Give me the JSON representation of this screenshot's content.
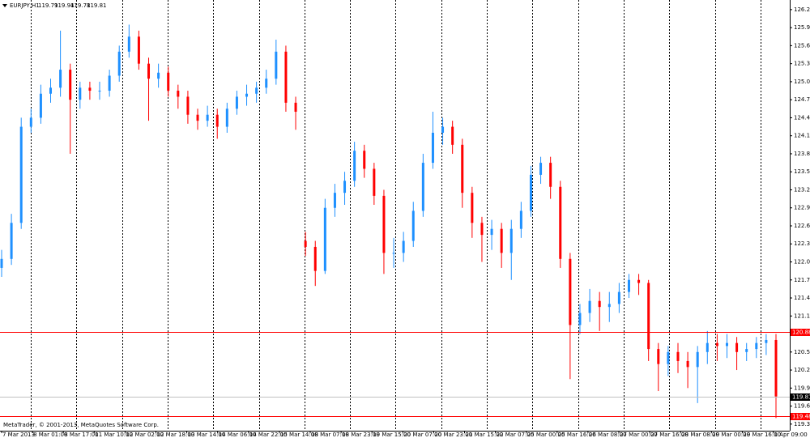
{
  "chart_data": {
    "type": "candlestick",
    "symbol": "EURJPY,H1",
    "ohlc": [
      119.79,
      119.94,
      119.78,
      119.81
    ],
    "copyright": "MetaTrader, © 2001-2013, MetaQuotes Software Corp.",
    "x_labels": [
      "7 Mar 2013",
      "8 Mar 01:00",
      "8 Mar 17:00",
      "11 Mar 10:00",
      "12 Mar 02:00",
      "12 Mar 18:00",
      "13 Mar 14:00",
      "14 Mar 06:00",
      "14 Mar 22:00",
      "15 Mar 14:00",
      "18 Mar 07:00",
      "18 Mar 23:00",
      "19 Mar 15:00",
      "20 Mar 07:00",
      "20 Mar 23:00",
      "21 Mar 15:00",
      "22 Mar 07:00",
      "25 Mar 00:00",
      "25 Mar 16:00",
      "26 Mar 08:00",
      "27 Mar 00:00",
      "27 Mar 16:00",
      "28 Mar 08:00",
      "29 Mar 00:00",
      "29 Mar 16:00",
      "1 Apr 09:00"
    ],
    "open": [
      121.95,
      122.1,
      122.7,
      124.3,
      124.45,
      124.85,
      124.95,
      125.25,
      124.75,
      124.95,
      124.9,
      124.9,
      125.15,
      125.55,
      125.8,
      125.35,
      125.1,
      125.2,
      124.9,
      124.8,
      124.5,
      124.4,
      124.5,
      124.3,
      124.6,
      124.8,
      124.85,
      124.95,
      125.1,
      125.55,
      124.7,
      122.4,
      122.3,
      121.9,
      122.95,
      123.2,
      123.4,
      123.9,
      123.6,
      123.15,
      122.2,
      122.2,
      122.4,
      122.9,
      123.7,
      124.2,
      124.3,
      124.0,
      123.2,
      122.7,
      122.5,
      122.6,
      122.2,
      122.6,
      122.9,
      123.5,
      123.7,
      123.3,
      122.1,
      121.0,
      121.2,
      121.4,
      121.3,
      121.35,
      121.55,
      121.75,
      121.7,
      120.6,
      120.35,
      120.55,
      120.4,
      120.3,
      120.55,
      120.7,
      120.65,
      120.7,
      120.55,
      120.6,
      120.7,
      120.75
    ],
    "high": [
      122.25,
      122.85,
      124.45,
      124.6,
      125.0,
      125.1,
      125.9,
      125.35,
      125.05,
      125.05,
      125.05,
      125.25,
      125.65,
      126.0,
      125.9,
      125.45,
      125.35,
      125.3,
      125.0,
      124.9,
      124.6,
      124.65,
      124.6,
      124.7,
      124.9,
      125.0,
      125.05,
      125.25,
      125.75,
      125.65,
      124.8,
      122.55,
      122.4,
      123.1,
      123.35,
      123.55,
      124.05,
      124.0,
      123.7,
      123.25,
      122.45,
      122.55,
      123.05,
      123.85,
      124.55,
      124.45,
      124.4,
      124.1,
      123.3,
      122.8,
      122.75,
      122.7,
      122.75,
      123.05,
      123.65,
      123.8,
      123.8,
      123.4,
      122.2,
      121.35,
      121.6,
      121.55,
      121.55,
      121.7,
      121.85,
      121.85,
      121.75,
      120.7,
      120.65,
      120.7,
      120.55,
      120.65,
      120.9,
      120.85,
      120.85,
      120.8,
      120.7,
      120.8,
      120.85,
      120.85
    ],
    "low": [
      121.8,
      122.0,
      122.6,
      124.2,
      124.35,
      124.7,
      124.8,
      123.85,
      124.6,
      124.75,
      124.75,
      124.8,
      125.05,
      125.45,
      125.25,
      124.4,
      124.95,
      124.8,
      124.6,
      124.35,
      124.25,
      124.3,
      124.1,
      124.2,
      124.5,
      124.65,
      124.7,
      124.85,
      125.0,
      124.55,
      124.25,
      122.15,
      121.65,
      121.85,
      122.8,
      123.0,
      123.3,
      123.45,
      123.0,
      121.85,
      121.95,
      122.05,
      122.3,
      122.8,
      123.6,
      124.0,
      123.85,
      122.95,
      122.45,
      122.05,
      122.25,
      121.95,
      121.75,
      122.45,
      122.8,
      123.35,
      123.1,
      121.95,
      120.1,
      120.85,
      121.05,
      120.9,
      121.05,
      121.2,
      121.45,
      121.5,
      120.4,
      119.9,
      120.15,
      120.2,
      119.95,
      119.7,
      120.35,
      120.4,
      120.45,
      120.25,
      120.4,
      120.45,
      120.5,
      119.45
    ],
    "close": [
      122.1,
      122.7,
      124.3,
      124.45,
      124.85,
      124.95,
      125.25,
      124.75,
      124.95,
      124.9,
      124.9,
      125.15,
      125.55,
      125.8,
      125.35,
      125.1,
      125.2,
      124.9,
      124.8,
      124.5,
      124.4,
      124.5,
      124.3,
      124.6,
      124.8,
      124.85,
      124.95,
      125.1,
      125.55,
      124.7,
      124.55,
      122.3,
      121.9,
      122.95,
      123.2,
      123.4,
      123.9,
      123.6,
      123.15,
      122.2,
      122.2,
      122.4,
      122.9,
      123.7,
      124.2,
      124.3,
      124.0,
      123.2,
      122.7,
      122.5,
      122.6,
      122.2,
      122.6,
      122.9,
      123.5,
      123.7,
      123.3,
      122.1,
      121.0,
      121.2,
      121.4,
      121.3,
      121.35,
      121.55,
      121.75,
      121.7,
      120.6,
      120.35,
      120.55,
      120.4,
      120.3,
      120.55,
      120.7,
      120.65,
      120.7,
      120.55,
      120.6,
      120.7,
      120.75,
      119.81
    ],
    "up_color": "#1e90ff",
    "down_color": "#ff0000",
    "ylim": [
      119.24,
      126.41
    ],
    "yticks": [
      126.25,
      125.95,
      125.65,
      125.35,
      125.05,
      124.75,
      124.45,
      124.15,
      123.85,
      123.55,
      123.25,
      122.95,
      122.65,
      122.35,
      122.05,
      121.75,
      121.45,
      121.15,
      120.55,
      120.25,
      119.95,
      119.65,
      119.35
    ],
    "levels": [
      {
        "value": 120.88,
        "color": "#ff0000"
      },
      {
        "value": 119.48,
        "color": "#ff0000"
      },
      {
        "value": 119.81,
        "color": "#c0c0c0",
        "label_color": "#000000"
      }
    ]
  }
}
